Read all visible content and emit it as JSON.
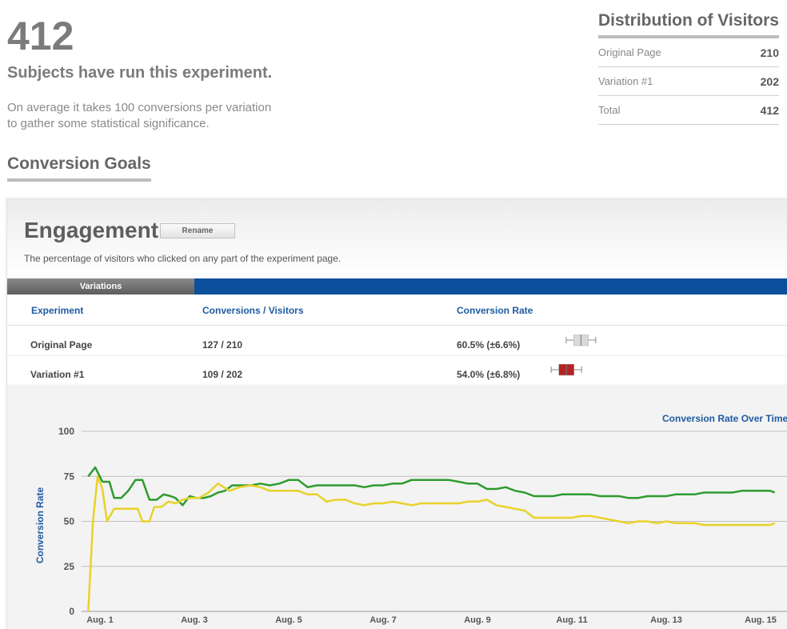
{
  "summary": {
    "subject_count": "412",
    "subjects_text": "Subjects have run this experiment.",
    "average_line1": "On average it takes 100 conversions per variation",
    "average_line2": "to gather some statistical significance."
  },
  "distribution": {
    "title": "Distribution of Visitors",
    "rows": [
      {
        "label": "Original Page",
        "value": "210"
      },
      {
        "label": "Variation #1",
        "value": "202"
      },
      {
        "label": "Total",
        "value": "412"
      }
    ]
  },
  "goals_heading": "Conversion Goals",
  "goal": {
    "title": "Engagement",
    "rename_label": "Rename",
    "description": "The percentage of visitors who clicked on any part of the experiment page.",
    "tab_label": "Variations",
    "columns": [
      "Experiment",
      "Conversions / Visitors",
      "Conversion Rate"
    ],
    "rows": [
      {
        "name": "Original Page",
        "conversions": "127 / 210",
        "rate": "60.5% (±6.6%)",
        "rate_value": 60.5,
        "margin": 6.6,
        "color": "#d9d9d9"
      },
      {
        "name": "Variation #1",
        "conversions": "109 / 202",
        "rate": "54.0% (±6.8%)",
        "rate_value": 54.0,
        "margin": 6.8,
        "color": "#b52323"
      }
    ]
  },
  "chart_data": {
    "type": "line",
    "title": "Conversion Rate Over Time",
    "ylabel": "Conversion Rate",
    "ylim": [
      0,
      100
    ],
    "yticks": [
      0,
      25,
      50,
      75,
      100
    ],
    "x_tick_labels": [
      "Aug. 1",
      "Aug. 3",
      "Aug. 5",
      "Aug. 7",
      "Aug. 9",
      "Aug. 11",
      "Aug. 13",
      "Aug. 15"
    ],
    "x_tick_days": [
      1,
      3,
      5,
      7,
      9,
      11,
      13,
      15
    ],
    "grid": true,
    "series": [
      {
        "color": "#2e9b2e",
        "points": [
          [
            0.75,
            75
          ],
          [
            0.9,
            80
          ],
          [
            1.05,
            72
          ],
          [
            1.2,
            72
          ],
          [
            1.3,
            63
          ],
          [
            1.45,
            63
          ],
          [
            1.6,
            67
          ],
          [
            1.75,
            73
          ],
          [
            1.9,
            73
          ],
          [
            2.05,
            62
          ],
          [
            2.2,
            62
          ],
          [
            2.35,
            65
          ],
          [
            2.5,
            64
          ],
          [
            2.6,
            63
          ],
          [
            2.75,
            59
          ],
          [
            2.9,
            64
          ],
          [
            3.05,
            63
          ],
          [
            3.2,
            63
          ],
          [
            3.35,
            64
          ],
          [
            3.5,
            66
          ],
          [
            3.65,
            67
          ],
          [
            3.8,
            70
          ],
          [
            4,
            70
          ],
          [
            4.2,
            70
          ],
          [
            4.4,
            71
          ],
          [
            4.6,
            70
          ],
          [
            4.8,
            71
          ],
          [
            5,
            73
          ],
          [
            5.2,
            73
          ],
          [
            5.4,
            69
          ],
          [
            5.6,
            70
          ],
          [
            5.8,
            70
          ],
          [
            6,
            70
          ],
          [
            6.2,
            70
          ],
          [
            6.4,
            70
          ],
          [
            6.6,
            69
          ],
          [
            6.8,
            70
          ],
          [
            7,
            70
          ],
          [
            7.2,
            71
          ],
          [
            7.4,
            71
          ],
          [
            7.6,
            73
          ],
          [
            7.8,
            73
          ],
          [
            8,
            73
          ],
          [
            8.2,
            73
          ],
          [
            8.4,
            73
          ],
          [
            8.6,
            72
          ],
          [
            8.8,
            71
          ],
          [
            9,
            71
          ],
          [
            9.2,
            68
          ],
          [
            9.4,
            68
          ],
          [
            9.6,
            69
          ],
          [
            9.8,
            67
          ],
          [
            10,
            66
          ],
          [
            10.2,
            64
          ],
          [
            10.4,
            64
          ],
          [
            10.6,
            64
          ],
          [
            10.8,
            65
          ],
          [
            11,
            65
          ],
          [
            11.2,
            65
          ],
          [
            11.4,
            65
          ],
          [
            11.6,
            64
          ],
          [
            11.8,
            64
          ],
          [
            12,
            64
          ],
          [
            12.2,
            63
          ],
          [
            12.4,
            63
          ],
          [
            12.6,
            64
          ],
          [
            12.8,
            64
          ],
          [
            13,
            64
          ],
          [
            13.2,
            65
          ],
          [
            13.4,
            65
          ],
          [
            13.6,
            65
          ],
          [
            13.8,
            66
          ],
          [
            14,
            66
          ],
          [
            14.2,
            66
          ],
          [
            14.4,
            66
          ],
          [
            14.6,
            67
          ],
          [
            14.8,
            67
          ],
          [
            15,
            67
          ],
          [
            15.2,
            67
          ],
          [
            15.3,
            66
          ]
        ]
      },
      {
        "color": "#e8d22a",
        "points": [
          [
            0.75,
            0
          ],
          [
            0.85,
            50
          ],
          [
            0.95,
            75
          ],
          [
            1.05,
            68
          ],
          [
            1.15,
            50
          ],
          [
            1.3,
            57
          ],
          [
            1.5,
            57
          ],
          [
            1.65,
            57
          ],
          [
            1.8,
            57
          ],
          [
            1.9,
            50
          ],
          [
            2.05,
            50
          ],
          [
            2.15,
            58
          ],
          [
            2.3,
            58
          ],
          [
            2.45,
            61
          ],
          [
            2.6,
            60
          ],
          [
            2.75,
            62
          ],
          [
            2.9,
            63
          ],
          [
            3.1,
            63
          ],
          [
            3.3,
            66
          ],
          [
            3.5,
            71
          ],
          [
            3.75,
            67
          ],
          [
            3.95,
            69
          ],
          [
            4.2,
            70
          ],
          [
            4.4,
            69
          ],
          [
            4.6,
            67
          ],
          [
            4.8,
            67
          ],
          [
            5,
            67
          ],
          [
            5.2,
            67
          ],
          [
            5.4,
            65
          ],
          [
            5.6,
            65
          ],
          [
            5.8,
            61
          ],
          [
            6,
            62
          ],
          [
            6.2,
            62
          ],
          [
            6.4,
            60
          ],
          [
            6.6,
            59
          ],
          [
            6.8,
            60
          ],
          [
            7,
            60
          ],
          [
            7.2,
            61
          ],
          [
            7.4,
            60
          ],
          [
            7.6,
            59
          ],
          [
            7.8,
            60
          ],
          [
            8,
            60
          ],
          [
            8.2,
            60
          ],
          [
            8.4,
            60
          ],
          [
            8.6,
            60
          ],
          [
            8.8,
            61
          ],
          [
            9,
            61
          ],
          [
            9.2,
            62
          ],
          [
            9.4,
            59
          ],
          [
            9.6,
            58
          ],
          [
            9.8,
            57
          ],
          [
            10,
            56
          ],
          [
            10.2,
            52
          ],
          [
            10.4,
            52
          ],
          [
            10.6,
            52
          ],
          [
            10.8,
            52
          ],
          [
            11,
            52
          ],
          [
            11.2,
            53
          ],
          [
            11.4,
            53
          ],
          [
            11.6,
            52
          ],
          [
            11.8,
            51
          ],
          [
            12,
            50
          ],
          [
            12.2,
            49
          ],
          [
            12.4,
            50
          ],
          [
            12.6,
            50
          ],
          [
            12.8,
            49
          ],
          [
            13,
            50
          ],
          [
            13.2,
            49
          ],
          [
            13.4,
            49
          ],
          [
            13.6,
            49
          ],
          [
            13.8,
            48
          ],
          [
            14,
            48
          ],
          [
            14.2,
            48
          ],
          [
            14.4,
            48
          ],
          [
            14.6,
            48
          ],
          [
            14.8,
            48
          ],
          [
            15,
            48
          ],
          [
            15.2,
            48
          ],
          [
            15.3,
            49
          ]
        ]
      }
    ]
  }
}
